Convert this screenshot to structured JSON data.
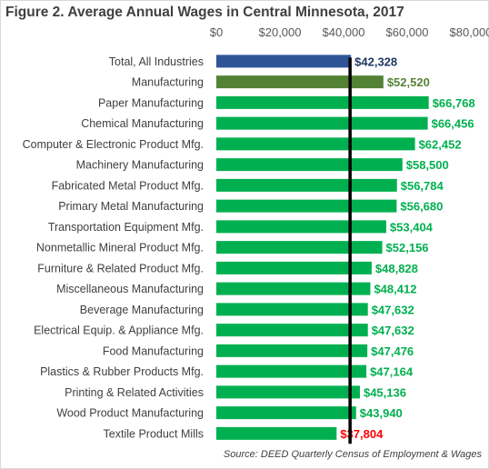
{
  "chart_data": {
    "type": "bar",
    "orientation": "horizontal",
    "title": "Figure 2. Average Annual Wages in Central Minnesota, 2017",
    "source": "Source: DEED Quarterly Census of Employment & Wages",
    "xlim": [
      0,
      80000
    ],
    "xticks": [
      0,
      20000,
      40000,
      60000,
      80000
    ],
    "xtick_labels": [
      "$0",
      "$20,000",
      "$40,000",
      "$60,000",
      "$80,000"
    ],
    "grid": false,
    "reference_line": 42328,
    "categories": [
      "Total, All Industries",
      "Manufacturing",
      "Paper Manufacturing",
      "Chemical Manufacturing",
      "Computer & Electronic Product Mfg.",
      "Machinery Manufacturing",
      "Fabricated Metal Product Mfg.",
      "Primary Metal Manufacturing",
      "Transportation Equipment Mfg.",
      "Nonmetallic Mineral Product Mfg.",
      "Furniture & Related Product Mfg.",
      "Miscellaneous Manufacturing",
      "Beverage Manufacturing",
      "Electrical Equip. &  Appliance Mfg.",
      "Food Manufacturing",
      "Plastics & Rubber Products Mfg.",
      "Printing & Related Activities",
      "Wood Product Manufacturing",
      "Textile Product Mills"
    ],
    "values": [
      42328,
      52520,
      66768,
      66456,
      62452,
      58500,
      56784,
      56680,
      53404,
      52156,
      48828,
      48412,
      47632,
      47632,
      47476,
      47164,
      45136,
      43940,
      37804
    ],
    "value_labels": [
      "$42,328",
      "$52,520",
      "$66,768",
      "$66,456",
      "$62,452",
      "$58,500",
      "$56,784",
      "$56,680",
      "$53,404",
      "$52,156",
      "$48,828",
      "$48,412",
      "$47,632",
      "$47,632",
      "$47,476",
      "$47,164",
      "$45,136",
      "$43,940",
      "$37,804"
    ],
    "bar_colors": [
      "#2f5597",
      "#548235",
      "#00b050",
      "#00b050",
      "#00b050",
      "#00b050",
      "#00b050",
      "#00b050",
      "#00b050",
      "#00b050",
      "#00b050",
      "#00b050",
      "#00b050",
      "#00b050",
      "#00b050",
      "#00b050",
      "#00b050",
      "#00b050",
      "#00b050"
    ],
    "label_colors": [
      "#203864",
      "#548235",
      "#00b050",
      "#00b050",
      "#00b050",
      "#00b050",
      "#00b050",
      "#00b050",
      "#00b050",
      "#00b050",
      "#00b050",
      "#00b050",
      "#00b050",
      "#00b050",
      "#00b050",
      "#00b050",
      "#00b050",
      "#00b050",
      "#ff0000"
    ],
    "reference_line_color": "#000000"
  }
}
